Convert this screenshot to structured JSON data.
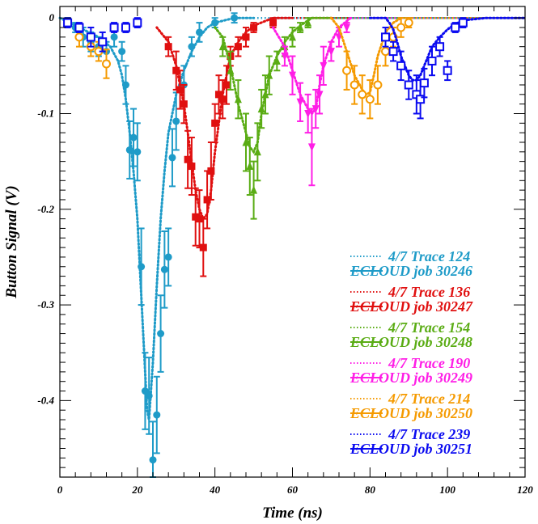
{
  "chart_data": {
    "type": "scatter",
    "xlabel": "Time (ns)",
    "ylabel": "Button Signal (V)",
    "xlim": [
      0,
      120
    ],
    "ylim": [
      -0.48,
      0.012
    ],
    "x_ticks": [
      0,
      20,
      40,
      60,
      80,
      100,
      120
    ],
    "x_tick_labels": [
      "0",
      "20",
      "40",
      "60",
      "80",
      "100",
      "120"
    ],
    "y_ticks": [
      0,
      -0.1,
      -0.2,
      -0.3,
      -0.4
    ],
    "y_tick_labels": [
      "0",
      "-0.1",
      "-0.2",
      "-0.3",
      "-0.4"
    ],
    "grid": false,
    "legend_position": "lower-right",
    "series": [
      {
        "trace_label": "4/7 Trace 124",
        "model_label": "ECLOUD job 30246",
        "color": "#1e9bc8",
        "marker": "circle-filled",
        "data_x": [
          2,
          4,
          6,
          8,
          10,
          12,
          14,
          16,
          17,
          18,
          19,
          20,
          21,
          22,
          23,
          24,
          25,
          26,
          27,
          28,
          29,
          30,
          32,
          34,
          36,
          40,
          45
        ],
        "data_y": [
          -0.005,
          -0.01,
          -0.02,
          -0.025,
          -0.03,
          -0.035,
          -0.02,
          -0.035,
          -0.07,
          -0.138,
          -0.125,
          -0.14,
          -0.26,
          -0.39,
          -0.395,
          -0.462,
          -0.415,
          -0.33,
          -0.263,
          -0.25,
          -0.146,
          -0.108,
          -0.07,
          -0.03,
          -0.015,
          -0.005,
          0
        ],
        "data_err": [
          0.005,
          0.005,
          0.01,
          0.01,
          0.01,
          0.01,
          0.01,
          0.01,
          0.02,
          0.03,
          0.03,
          0.03,
          0.04,
          0.04,
          0.04,
          0.04,
          0.04,
          0.04,
          0.04,
          0.03,
          0.03,
          0.03,
          0.02,
          0.01,
          0.01,
          0.005,
          0.005
        ],
        "model_x": [
          0,
          5,
          10,
          13,
          15,
          16,
          17,
          18,
          19,
          20,
          21,
          22,
          22.5,
          23,
          24,
          25,
          26,
          27,
          28,
          30,
          32,
          34,
          36,
          38,
          40,
          45,
          50
        ],
        "model_y": [
          0,
          -0.01,
          -0.02,
          -0.03,
          -0.045,
          -0.06,
          -0.085,
          -0.12,
          -0.16,
          -0.21,
          -0.29,
          -0.37,
          -0.41,
          -0.42,
          -0.36,
          -0.28,
          -0.21,
          -0.16,
          -0.12,
          -0.08,
          -0.055,
          -0.035,
          -0.02,
          -0.01,
          -0.005,
          0,
          0
        ]
      },
      {
        "trace_label": "4/7 Trace 136",
        "model_label": "ECLOUD job 30247",
        "color": "#e01010",
        "marker": "square-filled",
        "data_x": [
          28,
          30,
          31,
          32,
          33,
          34,
          35,
          36,
          37,
          38,
          39,
          40,
          41,
          42,
          43,
          44,
          46,
          48,
          50,
          55
        ],
        "data_y": [
          -0.03,
          -0.055,
          -0.075,
          -0.09,
          -0.148,
          -0.155,
          -0.208,
          -0.21,
          -0.24,
          -0.19,
          -0.16,
          -0.11,
          -0.08,
          -0.085,
          -0.07,
          -0.04,
          -0.03,
          -0.02,
          -0.01,
          -0.005
        ],
        "data_err": [
          0.01,
          0.02,
          0.02,
          0.02,
          0.03,
          0.03,
          0.03,
          0.03,
          0.03,
          0.03,
          0.03,
          0.02,
          0.02,
          0.02,
          0.02,
          0.01,
          0.01,
          0.01,
          0.005,
          0.005
        ],
        "model_x": [
          25,
          28,
          30,
          31,
          32,
          33,
          34,
          35,
          36,
          37,
          38,
          39,
          40,
          41,
          42,
          43,
          44,
          46,
          48,
          50,
          55,
          60
        ],
        "model_y": [
          -0.01,
          -0.025,
          -0.05,
          -0.07,
          -0.09,
          -0.12,
          -0.15,
          -0.18,
          -0.2,
          -0.21,
          -0.205,
          -0.18,
          -0.14,
          -0.11,
          -0.08,
          -0.06,
          -0.04,
          -0.025,
          -0.015,
          -0.008,
          0,
          0
        ]
      },
      {
        "trace_label": "4/7 Trace 154",
        "model_label": "ECLOUD job 30248",
        "color": "#5aac14",
        "marker": "triangle-up-filled",
        "data_x": [
          42,
          44,
          46,
          48,
          49,
          50,
          51,
          52,
          53,
          54,
          56,
          58,
          60,
          62,
          64
        ],
        "data_y": [
          -0.03,
          -0.055,
          -0.085,
          -0.13,
          -0.155,
          -0.18,
          -0.14,
          -0.095,
          -0.08,
          -0.06,
          -0.045,
          -0.03,
          -0.02,
          -0.01,
          -0.005
        ],
        "data_err": [
          0.01,
          0.02,
          0.02,
          0.03,
          0.03,
          0.03,
          0.03,
          0.02,
          0.02,
          0.02,
          0.01,
          0.01,
          0.01,
          0.005,
          0.005
        ],
        "model_x": [
          40,
          42,
          44,
          46,
          48,
          49,
          50,
          51,
          52,
          53,
          54,
          56,
          58,
          60,
          62,
          65,
          70
        ],
        "model_y": [
          -0.01,
          -0.02,
          -0.05,
          -0.09,
          -0.12,
          -0.135,
          -0.14,
          -0.13,
          -0.1,
          -0.08,
          -0.06,
          -0.04,
          -0.025,
          -0.015,
          -0.008,
          0,
          0
        ]
      },
      {
        "trace_label": "4/7 Trace 190",
        "model_label": "ECLOUD job 30249",
        "color": "#ff1ee6",
        "marker": "triangle-down-filled",
        "data_x": [
          58,
          60,
          62,
          64,
          65,
          66,
          67,
          68,
          70,
          72,
          74
        ],
        "data_y": [
          -0.04,
          -0.06,
          -0.088,
          -0.1,
          -0.135,
          -0.095,
          -0.08,
          -0.05,
          -0.035,
          -0.02,
          -0.01
        ],
        "data_err": [
          0.01,
          0.02,
          0.02,
          0.02,
          0.04,
          0.02,
          0.02,
          0.02,
          0.01,
          0.01,
          0.005
        ],
        "model_x": [
          55,
          58,
          60,
          62,
          64,
          65,
          66,
          67,
          68,
          70,
          72,
          75
        ],
        "model_y": [
          -0.01,
          -0.03,
          -0.055,
          -0.08,
          -0.095,
          -0.1,
          -0.095,
          -0.07,
          -0.05,
          -0.025,
          -0.01,
          0
        ]
      },
      {
        "trace_label": "4/7 Trace 214",
        "model_label": "ECLOUD job 30250",
        "color": "#f59a00",
        "marker": "circle-open",
        "data_x": [
          5,
          8,
          10,
          12,
          74,
          76,
          78,
          80,
          82,
          84,
          86,
          88,
          90
        ],
        "data_y": [
          -0.02,
          -0.03,
          -0.035,
          -0.048,
          -0.055,
          -0.07,
          -0.08,
          -0.085,
          -0.07,
          -0.035,
          -0.02,
          -0.01,
          -0.005
        ],
        "data_err": [
          0.01,
          0.01,
          0.01,
          0.015,
          0.02,
          0.02,
          0.02,
          0.02,
          0.02,
          0.015,
          0.01,
          0.01,
          0.005
        ],
        "model_x": [
          70,
          72,
          74,
          76,
          78,
          79,
          80,
          81,
          82,
          84,
          86,
          88
        ],
        "model_y": [
          0,
          -0.01,
          -0.035,
          -0.06,
          -0.075,
          -0.08,
          -0.078,
          -0.06,
          -0.04,
          -0.015,
          -0.005,
          0
        ]
      },
      {
        "trace_label": "4/7 Trace 239",
        "model_label": "ECLOUD job 30251",
        "color": "#0a0af0",
        "marker": "square-open",
        "data_x": [
          2,
          5,
          8,
          11,
          14,
          17,
          20,
          84,
          86,
          88,
          90,
          92,
          93,
          94,
          96,
          98,
          100,
          102,
          104
        ],
        "data_y": [
          -0.005,
          -0.01,
          -0.02,
          -0.025,
          -0.01,
          -0.01,
          -0.005,
          -0.02,
          -0.035,
          -0.05,
          -0.07,
          -0.08,
          -0.085,
          -0.068,
          -0.045,
          -0.03,
          -0.055,
          -0.01,
          -0.005
        ],
        "data_err": [
          0.005,
          0.005,
          0.01,
          0.01,
          0.005,
          0.005,
          0.005,
          0.01,
          0.01,
          0.015,
          0.015,
          0.02,
          0.02,
          0.015,
          0.015,
          0.01,
          0.01,
          0.005,
          0.005
        ],
        "model_x": [
          80,
          84,
          85,
          86,
          87,
          88,
          89,
          90,
          91,
          92,
          93,
          94,
          95,
          96,
          98,
          100,
          102,
          105,
          110,
          120
        ],
        "model_y": [
          0,
          0,
          -0.005,
          -0.012,
          -0.025,
          -0.04,
          -0.05,
          -0.06,
          -0.065,
          -0.065,
          -0.06,
          -0.05,
          -0.04,
          -0.03,
          -0.02,
          -0.012,
          -0.006,
          -0.002,
          0,
          0
        ]
      }
    ]
  }
}
